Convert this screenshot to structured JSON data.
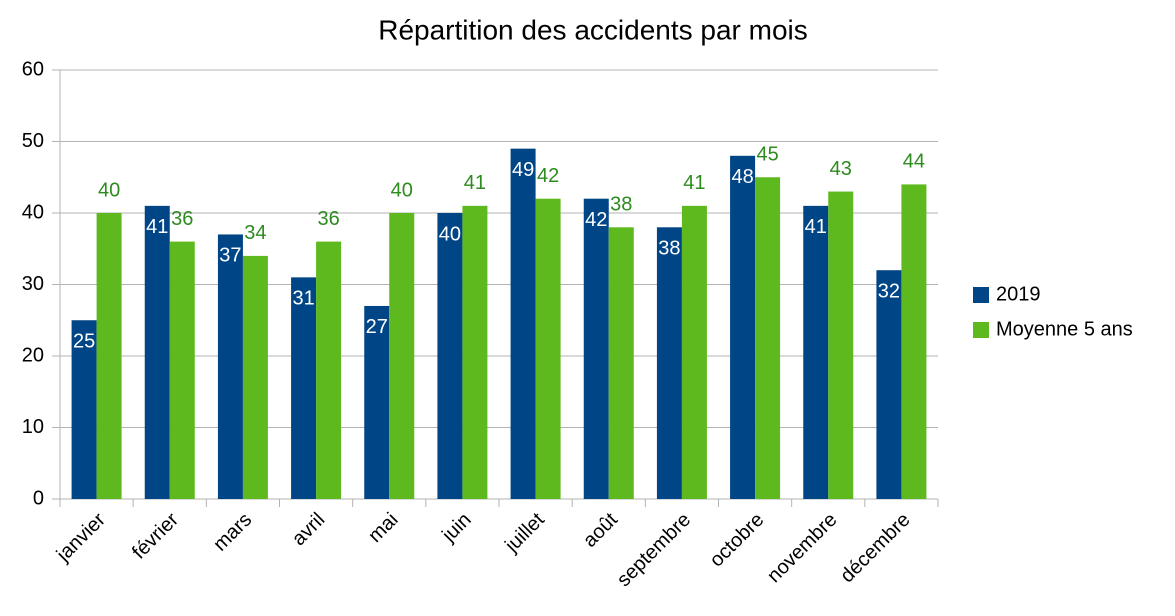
{
  "chart_data": {
    "type": "bar",
    "title": "Répartition des accidents par mois",
    "categories": [
      "janvier",
      "février",
      "mars",
      "avril",
      "mai",
      "juin",
      "juillet",
      "août",
      "septembre",
      "octobre",
      "novembre",
      "décembre"
    ],
    "series": [
      {
        "name": "2019",
        "color": "#004586",
        "values": [
          25,
          41,
          37,
          31,
          27,
          40,
          49,
          42,
          38,
          48,
          41,
          32
        ]
      },
      {
        "name": "Moyenne 5 ans",
        "color": "#5eb91e",
        "values": [
          40,
          36,
          34,
          36,
          40,
          41,
          42,
          38,
          41,
          45,
          43,
          44
        ]
      }
    ],
    "ylim": [
      0,
      60
    ],
    "yticks": [
      0,
      10,
      20,
      30,
      40,
      50,
      60
    ],
    "grid": true,
    "legend": "right"
  }
}
